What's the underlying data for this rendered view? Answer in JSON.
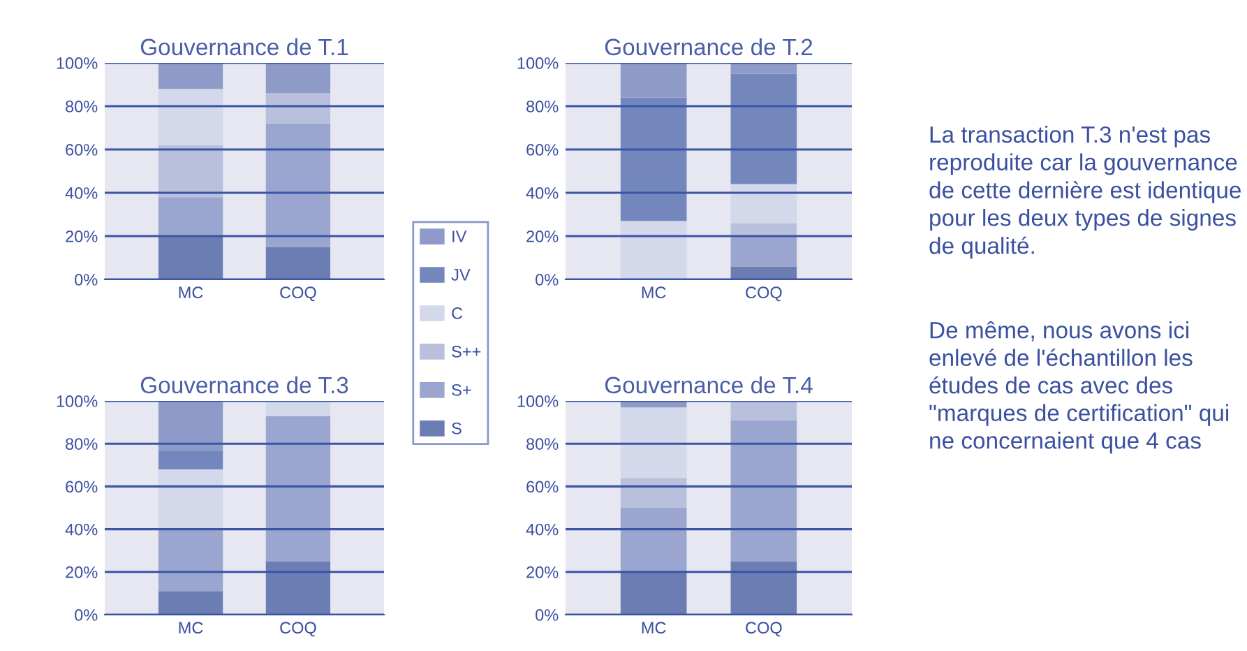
{
  "chart_data": [
    {
      "type": "bar",
      "title": "Gouvernance de T.1",
      "stacked": true,
      "categories": [
        "MC",
        "COQ"
      ],
      "ylim": [
        0,
        100
      ],
      "yticks": [
        {
          "value": 0,
          "label": "0%"
        },
        {
          "value": 20,
          "label": "20%"
        },
        {
          "value": 40,
          "label": "40%"
        },
        {
          "value": 60,
          "label": "60%"
        },
        {
          "value": 80,
          "label": "80%"
        },
        {
          "value": 100,
          "label": "100%"
        }
      ],
      "grid": "y",
      "legend": "right",
      "series": [
        {
          "name": "S",
          "color": "#6b7db3",
          "values": [
            20,
            15
          ]
        },
        {
          "name": "S+",
          "color": "#9aa6cf",
          "values": [
            18,
            57
          ]
        },
        {
          "name": "S++",
          "color": "#b9c0dc",
          "values": [
            24,
            14
          ]
        },
        {
          "name": "C",
          "color": "#d3d8ea",
          "values": [
            26,
            0
          ]
        },
        {
          "name": "JV",
          "color": "#7487bd",
          "values": [
            0,
            0
          ]
        },
        {
          "name": "IV",
          "color": "#8e9bc9",
          "values": [
            12,
            14
          ]
        }
      ]
    },
    {
      "type": "bar",
      "title": "Gouvernance de T.2",
      "stacked": true,
      "categories": [
        "MC",
        "COQ"
      ],
      "ylim": [
        0,
        100
      ],
      "yticks": [
        {
          "value": 0,
          "label": "0%"
        },
        {
          "value": 20,
          "label": "20%"
        },
        {
          "value": 40,
          "label": "40%"
        },
        {
          "value": 60,
          "label": "60%"
        },
        {
          "value": 80,
          "label": "80%"
        },
        {
          "value": 100,
          "label": "100%"
        }
      ],
      "grid": "y",
      "series": [
        {
          "color": "#6b7db3",
          "values": [
            0,
            6
          ]
        },
        {
          "color": "#9aa6cf",
          "values": [
            0,
            14
          ]
        },
        {
          "color": "#b9c0dc",
          "values": [
            0,
            6
          ]
        },
        {
          "color": "#d3d8ea",
          "values": [
            27,
            18
          ]
        },
        {
          "color": "#7487bd",
          "values": [
            57,
            51
          ]
        },
        {
          "color": "#8e9bc9",
          "values": [
            16,
            5
          ]
        }
      ]
    },
    {
      "type": "bar",
      "title": "Gouvernance de T.3",
      "stacked": true,
      "categories": [
        "MC",
        "COQ"
      ],
      "ylim": [
        0,
        100
      ],
      "yticks": [
        {
          "value": 0,
          "label": "0%"
        },
        {
          "value": 20,
          "label": "20%"
        },
        {
          "value": 40,
          "label": "40%"
        },
        {
          "value": 60,
          "label": "60%"
        },
        {
          "value": 80,
          "label": "80%"
        },
        {
          "value": 100,
          "label": "100%"
        }
      ],
      "grid": "y",
      "series": [
        {
          "color": "#6b7db3",
          "values": [
            11,
            25
          ]
        },
        {
          "color": "#9aa6cf",
          "values": [
            29,
            68
          ]
        },
        {
          "color": "#b9c0dc",
          "values": [
            0,
            0
          ]
        },
        {
          "color": "#d3d8ea",
          "values": [
            28,
            7
          ]
        },
        {
          "color": "#7487bd",
          "values": [
            9,
            0
          ]
        },
        {
          "color": "#8e9bc9",
          "values": [
            23,
            0
          ]
        }
      ]
    },
    {
      "type": "bar",
      "title": "Gouvernance de T.4",
      "stacked": true,
      "categories": [
        "MC",
        "COQ"
      ],
      "ylim": [
        0,
        100
      ],
      "yticks": [
        {
          "value": 0,
          "label": "0%"
        },
        {
          "value": 20,
          "label": "20%"
        },
        {
          "value": 40,
          "label": "40%"
        },
        {
          "value": 60,
          "label": "60%"
        },
        {
          "value": 80,
          "label": "80%"
        },
        {
          "value": 100,
          "label": "100%"
        }
      ],
      "grid": "y",
      "series": [
        {
          "color": "#6b7db3",
          "values": [
            20,
            25
          ]
        },
        {
          "color": "#9aa6cf",
          "values": [
            30,
            66
          ]
        },
        {
          "color": "#b9c0dc",
          "values": [
            14,
            9
          ]
        },
        {
          "color": "#d3d8ea",
          "values": [
            33,
            0
          ]
        },
        {
          "color": "#7487bd",
          "values": [
            0,
            0
          ]
        },
        {
          "color": "#8e9bc9",
          "values": [
            3,
            0
          ]
        }
      ]
    },
    {
      "type": "other",
      "annotations": [
        "La transaction T.3 n'est pas reproduite car la gouvernance de cette dernière est identique pour les deux types de signes de qualité.",
        "De même, nous avons ici enlevé de l'échantillon les études de cas avec des \"marques de certification\" qui ne concernaient que 4 cas"
      ]
    }
  ]
}
